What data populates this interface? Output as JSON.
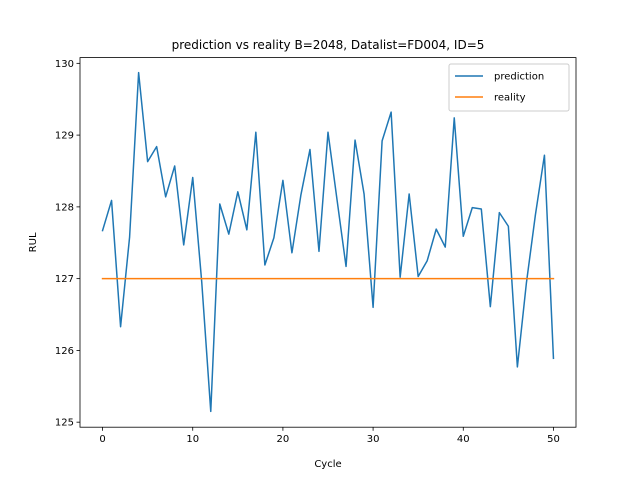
{
  "chart_data": {
    "type": "line",
    "title": "prediction vs reality B=2048, Datalist=FD004, ID=5",
    "xlabel": "Cycle",
    "ylabel": "RUL",
    "xlim": [
      -2.5,
      52.5
    ],
    "ylim": [
      124.93,
      130.08
    ],
    "xticks": [
      0,
      10,
      20,
      30,
      40,
      50
    ],
    "yticks": [
      125,
      126,
      127,
      128,
      129,
      130
    ],
    "grid": false,
    "legend_position": "top-right",
    "x": [
      0,
      1,
      2,
      3,
      4,
      5,
      6,
      7,
      8,
      9,
      10,
      11,
      12,
      13,
      14,
      15,
      16,
      17,
      18,
      19,
      20,
      21,
      22,
      23,
      24,
      25,
      26,
      27,
      28,
      29,
      30,
      31,
      32,
      33,
      34,
      35,
      36,
      37,
      38,
      39,
      40,
      41,
      42,
      43,
      44,
      45,
      46,
      47,
      48,
      49,
      50
    ],
    "series": [
      {
        "name": "prediction",
        "color": "#1f77b4",
        "values": [
          127.67,
          128.09,
          126.33,
          127.58,
          129.87,
          128.63,
          128.84,
          128.14,
          128.57,
          127.47,
          128.41,
          126.95,
          125.15,
          128.04,
          127.62,
          128.21,
          127.68,
          129.04,
          127.19,
          127.57,
          128.37,
          127.36,
          128.17,
          128.8,
          127.38,
          129.04,
          128.1,
          127.17,
          128.93,
          128.18,
          126.6,
          128.92,
          129.32,
          127.02,
          128.18,
          127.03,
          127.25,
          127.69,
          127.44,
          129.24,
          127.59,
          127.99,
          127.97,
          126.61,
          127.92,
          127.73,
          125.77,
          126.94,
          127.89,
          128.72,
          125.89
        ]
      },
      {
        "name": "reality",
        "color": "#ff7f0e",
        "values": [
          127,
          127,
          127,
          127,
          127,
          127,
          127,
          127,
          127,
          127,
          127,
          127,
          127,
          127,
          127,
          127,
          127,
          127,
          127,
          127,
          127,
          127,
          127,
          127,
          127,
          127,
          127,
          127,
          127,
          127,
          127,
          127,
          127,
          127,
          127,
          127,
          127,
          127,
          127,
          127,
          127,
          127,
          127,
          127,
          127,
          127,
          127,
          127,
          127,
          127,
          127
        ]
      }
    ]
  }
}
